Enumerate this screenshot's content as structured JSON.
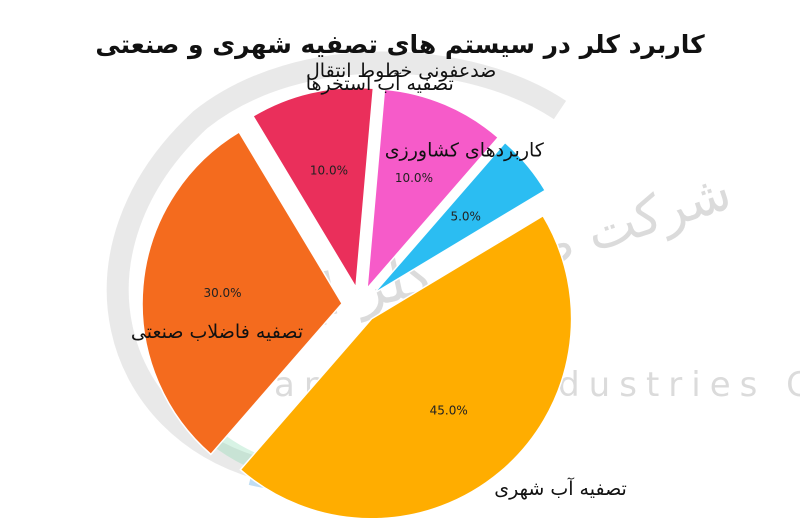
{
  "chart_data": {
    "type": "pie",
    "title": "کاربرد کلر در سیستم های تصفیه شهری و صنعتی",
    "slices": [
      {
        "label": "ضدعفونی خطوط انتقال",
        "value": 10.0,
        "pct_label": "10.0%",
        "color": "#ea2f5b"
      },
      {
        "label": "تصفیه فاضلاب صنعتی",
        "value": 30.0,
        "pct_label": "30.0%",
        "color": "#f46b1e"
      },
      {
        "label": "تصفیه آب شهری",
        "value": 45.0,
        "pct_label": "45.0%",
        "color": "#ffad00"
      },
      {
        "label": "کاربردهای کشاورزی",
        "value": 5.0,
        "pct_label": "5.0%",
        "color": "#2bbdf2"
      },
      {
        "label": "تصفیه آب استخرها",
        "value": 10.0,
        "pct_label": "10.0%",
        "color": "#f65bc9"
      }
    ]
  },
  "watermark": {
    "text_fa_company": "شرکت صنایع",
    "text_fa_name": "کلر ایران",
    "text_en": "Iran Chlor Industries Co"
  }
}
